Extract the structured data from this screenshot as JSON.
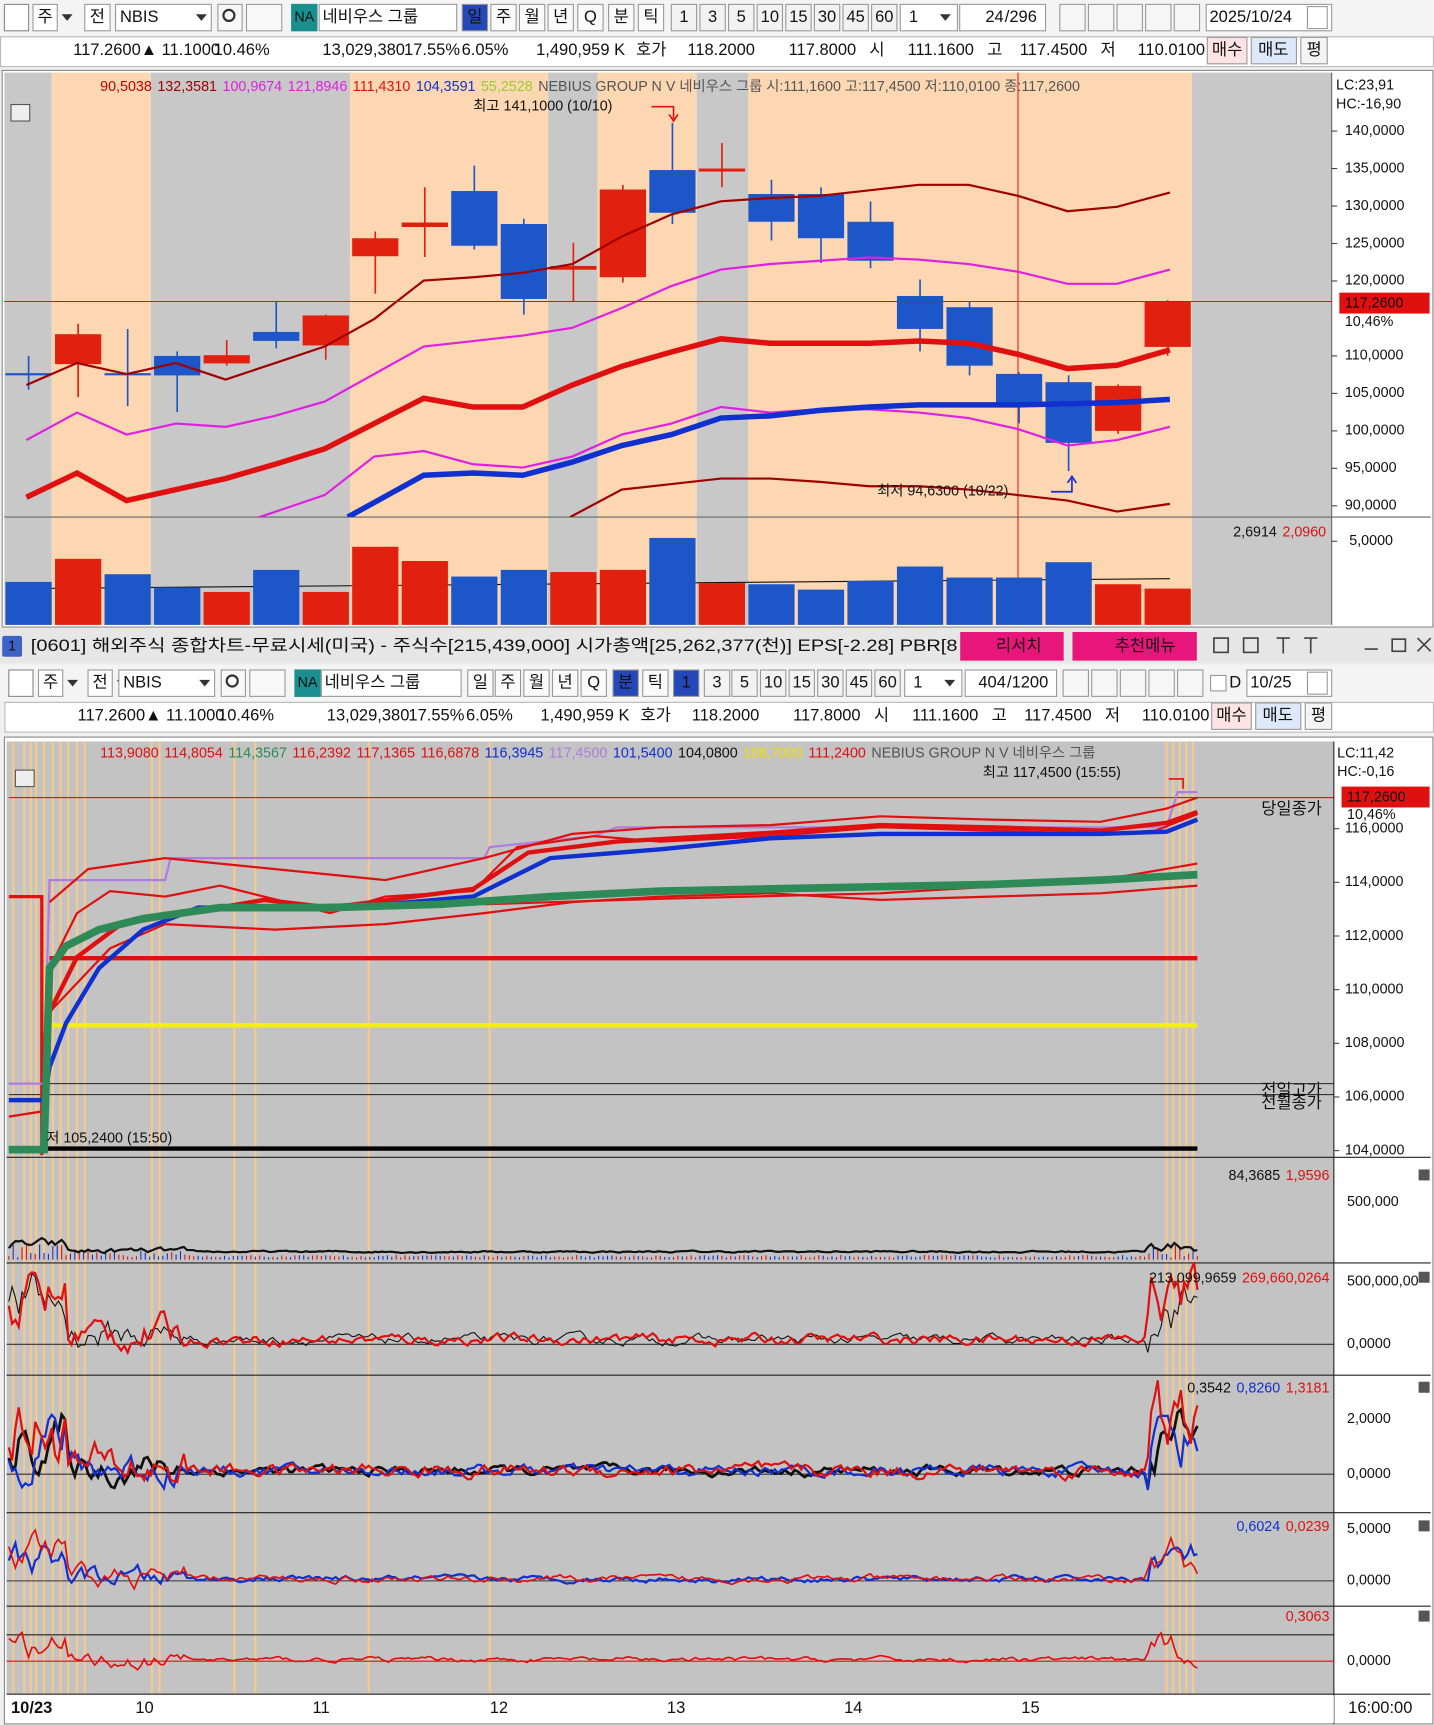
{
  "toolbar1": {
    "modes": [
      "주",
      "전"
    ],
    "code": "NBIS",
    "badge": "NA",
    "name": "네비우스 그룹",
    "buttons": [
      "일",
      "주",
      "월",
      "년",
      "Q",
      "분",
      "틱",
      "1",
      "3",
      "5",
      "10",
      "15",
      "30",
      "45",
      "60"
    ],
    "active": [
      0
    ],
    "interval": "1",
    "page": "24",
    "total": "/296",
    "date": "2025/10/24"
  },
  "quote": {
    "items": [
      {
        "text": "117.2600▲ 11.1000",
        "color": "#e0101c"
      },
      {
        "text": "10.46%",
        "color": "#e0101c"
      },
      {
        "text": "13,029,380",
        "color": "#111111"
      },
      {
        "text": "17.55%",
        "color": "#1f3fd0"
      },
      {
        "text": "6.05%",
        "color": "#111111"
      },
      {
        "text": "1,490,959 K",
        "color": "#111111"
      },
      {
        "text": "호가",
        "color": "#111111"
      },
      {
        "text": "118.2000",
        "color": "#e0101c"
      },
      {
        "text": "117.8000",
        "color": "#e0101c"
      },
      {
        "text": "시",
        "color": "#111111"
      },
      {
        "text": "111.1600",
        "color": "#e0101c"
      },
      {
        "text": "고",
        "color": "#111111"
      },
      {
        "text": "117.4500",
        "color": "#e0101c"
      },
      {
        "text": "저",
        "color": "#111111"
      },
      {
        "text": "110.0100",
        "color": "#e0101c"
      }
    ],
    "buy": "매수",
    "sell": "매도",
    "avg": "평"
  },
  "chart1": {
    "legend": [
      {
        "text": "90,5038",
        "color": "#c00000"
      },
      {
        "text": "132,3581",
        "color": "#a00000"
      },
      {
        "text": "100,9674",
        "color": "#e020e0"
      },
      {
        "text": "121,8946",
        "color": "#e020e0"
      },
      {
        "text": "111,4310",
        "color": "#e01010"
      },
      {
        "text": "104,3591",
        "color": "#1030d0"
      },
      {
        "text": "55,2528",
        "color": "#9acd32"
      },
      {
        "text": "NEBIUS GROUP N V  네비우스 그룹 시:111,1600 고:117,4500 저:110,0100 종:117,2600",
        "color": "#555555"
      }
    ],
    "high_note": "최고 141,1000 (10/10)",
    "low_note": "최저 94,6300 (10/22)",
    "lc": "LC:23,91",
    "hc": "HC:-16,90",
    "price_tag": "117,2600",
    "change_tag": "10,46%",
    "ylim": [
      88.5,
      147.8
    ],
    "yticks": [
      {
        "value": 140,
        "label": "140,0000"
      },
      {
        "value": 135,
        "label": "135,0000"
      },
      {
        "value": 130,
        "label": "130,0000"
      },
      {
        "value": 125,
        "label": "125,0000"
      },
      {
        "value": 120,
        "label": "120,0000"
      },
      {
        "value": 110,
        "label": "110,0000"
      },
      {
        "value": 105,
        "label": "105,0000"
      },
      {
        "value": 100,
        "label": "100,0000"
      },
      {
        "value": 95,
        "label": "95,0000"
      },
      {
        "value": 90,
        "label": "90,0000"
      }
    ],
    "up_color": "#e2200f",
    "down_color": "#1d56c9",
    "open": [
      107.7,
      108.9,
      107.7,
      110,
      109,
      113.2,
      111.4,
      123.3,
      127.2,
      132,
      127.6,
      121.5,
      120.5,
      134.8,
      134.6,
      131.6,
      131.6,
      127.9,
      118,
      116.5,
      107.6,
      106.5,
      100,
      111.2
    ],
    "high": [
      110,
      114.3,
      113.6,
      110.6,
      112.1,
      117.3,
      115.5,
      126.6,
      132.5,
      135.4,
      128.3,
      125.1,
      132.8,
      141.1,
      138.4,
      133.5,
      132.5,
      130.6,
      120.2,
      117.3,
      107.8,
      107.4,
      106.2,
      117.45
    ],
    "low": [
      105.5,
      104.5,
      103.3,
      102.5,
      108.7,
      111,
      109.5,
      118.3,
      123.2,
      124.2,
      115.5,
      117.3,
      119.8,
      127.6,
      132.5,
      125.4,
      122.4,
      121.7,
      110.6,
      107.4,
      101,
      94.63,
      99.6,
      110.01
    ],
    "close": [
      107.7,
      112.9,
      107.7,
      107.4,
      110.1,
      112,
      115.4,
      125.7,
      127.8,
      124.7,
      117.6,
      122,
      132.2,
      129.1,
      135,
      127.9,
      125.7,
      122.7,
      113.6,
      108.7,
      103.7,
      98.4,
      106,
      117.26
    ],
    "volume": {
      "legend": [
        {
          "text": "2,6914",
          "color": "#111111"
        },
        {
          "text": "2,0960",
          "color": "#e01010"
        }
      ],
      "ylim": [
        0,
        6.12
      ],
      "yticks": [
        {
          "value": 5,
          "label": "5,0000"
        }
      ],
      "values": [
        2.57,
        3.95,
        3.03,
        2.24,
        1.97,
        3.29,
        1.97,
        4.67,
        3.82,
        2.89,
        3.29,
        3.16,
        3.29,
        5.2,
        2.5,
        2.43,
        2.11,
        2.63,
        3.49,
        2.83,
        2.83,
        3.75,
        2.43,
        2.17
      ]
    }
  },
  "title_bar": {
    "number": "1",
    "text": "[0601] 해외주식 종합차트-무료시세(미국) - 주식수[215,439,000] 시가총액[25,262,377(천)] EPS[-2.28] PBR[8",
    "research": "리서치",
    "recommend": "추천메뉴"
  },
  "toolbar2": {
    "modes": [
      "주",
      "전"
    ],
    "code": "NBIS",
    "badge": "NA",
    "name": "네비우스 그룹",
    "buttons": [
      "일",
      "주",
      "월",
      "년",
      "Q",
      "분",
      "틱",
      "1",
      "3",
      "5",
      "10",
      "15",
      "30",
      "45",
      "60"
    ],
    "active": [
      5,
      7
    ],
    "interval": "1",
    "page": "404",
    "total": "/1200",
    "check": "D",
    "date": "10/25"
  },
  "chart2": {
    "legend": [
      {
        "text": "113,9080",
        "color": "#e01010"
      },
      {
        "text": "114,8054",
        "color": "#e01010"
      },
      {
        "text": "114,3567",
        "color": "#2e8b57"
      },
      {
        "text": "116,2392",
        "color": "#e01010"
      },
      {
        "text": "117,1365",
        "color": "#e01010"
      },
      {
        "text": "116,6878",
        "color": "#e01010"
      },
      {
        "text": "116,3945",
        "color": "#1030d0"
      },
      {
        "text": "117,4500",
        "color": "#b07ce0"
      },
      {
        "text": "101,5400",
        "color": "#1030d0"
      },
      {
        "text": "104,0800",
        "color": "#111111"
      },
      {
        "text": "108,7000",
        "color": "#f0e000"
      },
      {
        "text": "111,2400",
        "color": "#e01010"
      },
      {
        "text": "NEBIUS GROUP N V  네비우스 그룹",
        "color": "#555555"
      }
    ],
    "high_note": "최고 117,4500 (15:55)",
    "low_note": "저 105,2400 (15:50)",
    "close_label": "당일종가",
    "prev_high_label": "전일고가",
    "prev_month_close_label": "전월종가",
    "price_tag": "117,2600",
    "change_tag": "10,46%",
    "lc": "LC:11,42",
    "hc": "HC:-0,16",
    "ylim": [
      103.75,
      119.25
    ],
    "yticks": [
      {
        "value": 116,
        "label": "116,0000"
      },
      {
        "value": 114,
        "label": "114,0000"
      },
      {
        "value": 112,
        "label": "112,0000"
      },
      {
        "value": 110,
        "label": "110,0000"
      },
      {
        "value": 108,
        "label": "108,0000"
      },
      {
        "value": 106,
        "label": "106,0000"
      },
      {
        "value": 104,
        "label": "104,0000"
      }
    ],
    "panels": [
      {
        "legend": [
          {
            "text": "84,3685",
            "color": "#111111"
          },
          {
            "text": "1,9596",
            "color": "#e01010"
          }
        ],
        "ticks": [
          "500,000"
        ]
      },
      {
        "legend": [
          {
            "text": "213,099,9659",
            "color": "#111111"
          },
          {
            "text": "269,660,0264",
            "color": "#e01010"
          }
        ],
        "ticks": [
          "500,000,00",
          "0,0000"
        ]
      },
      {
        "legend": [
          {
            "text": "0,3542",
            "color": "#111111"
          },
          {
            "text": "0,8260",
            "color": "#1030d0"
          },
          {
            "text": "1,3181",
            "color": "#e01010"
          }
        ],
        "ticks": [
          "2,0000",
          "0,0000"
        ]
      },
      {
        "legend": [
          {
            "text": "0,6024",
            "color": "#1030d0"
          },
          {
            "text": "0,0239",
            "color": "#e01010"
          }
        ],
        "ticks": [
          "5,0000",
          "0,0000"
        ]
      },
      {
        "legend": [
          {
            "text": "0,3063",
            "color": "#e01010"
          }
        ],
        "ticks": [
          "0,0000"
        ]
      }
    ],
    "dates": [
      "10/23",
      "10",
      "11",
      "12",
      "13",
      "14",
      "15",
      "16:00:00"
    ]
  }
}
